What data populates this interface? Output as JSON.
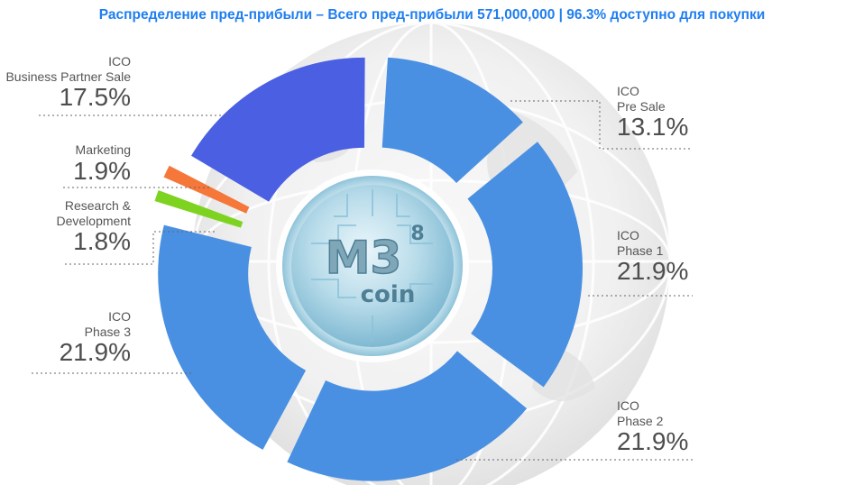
{
  "title": "Распределение пред-прибыли – Всего пред-прибыли 571,000,000 | 96.3% доступно для покупки",
  "logo": {
    "text_main": "M3",
    "text_sup": "8",
    "text_sub": "coin"
  },
  "chart_data": {
    "type": "pie",
    "variant": "donut",
    "title": "Распределение пред-прибыли – Всего пред-прибыли 571,000,000 | 96.3% доступно для покупки",
    "slices": [
      {
        "label_line1": "ICO",
        "label_line2": "Pre Sale",
        "value": 13.1,
        "value_label": "13.1%",
        "color": "#4a90e2"
      },
      {
        "label_line1": "ICO",
        "label_line2": "Phase 1",
        "value": 21.9,
        "value_label": "21.9%",
        "color": "#4a90e2"
      },
      {
        "label_line1": "ICO",
        "label_line2": "Phase 2",
        "value": 21.9,
        "value_label": "21.9%",
        "color": "#4a90e2"
      },
      {
        "label_line1": "ICO",
        "label_line2": "Phase 3",
        "value": 21.9,
        "value_label": "21.9%",
        "color": "#4a90e2"
      },
      {
        "label_line1": "Research &",
        "label_line2": "Development",
        "value": 1.8,
        "value_label": "1.8%",
        "color": "#7ed321"
      },
      {
        "label_line1": "Marketing",
        "label_line2": "",
        "value": 1.9,
        "value_label": "1.9%",
        "color": "#f5773a"
      },
      {
        "label_line1": "ICO",
        "label_line2": "Business Partner Sale",
        "value": 17.5,
        "value_label": "17.5%",
        "color": "#4a5fe2"
      }
    ]
  }
}
